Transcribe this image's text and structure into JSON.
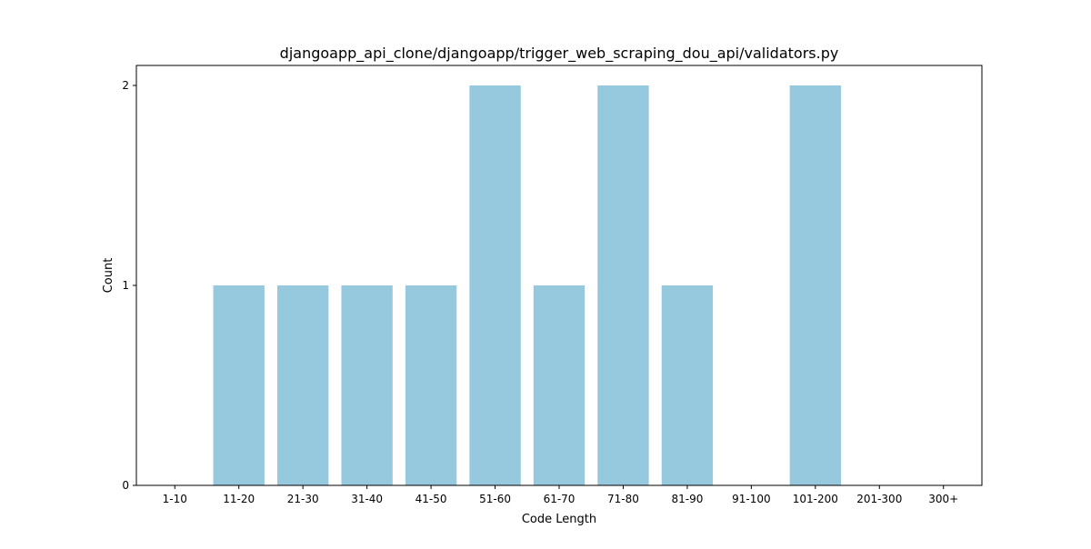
{
  "chart_data": {
    "type": "bar",
    "title": "djangoapp_api_clone/djangoapp/trigger_web_scraping_dou_api/validators.py",
    "xlabel": "Code Length",
    "ylabel": "Count",
    "categories": [
      "1-10",
      "11-20",
      "21-30",
      "31-40",
      "41-50",
      "51-60",
      "61-70",
      "71-80",
      "81-90",
      "91-100",
      "101-200",
      "201-300",
      "300+"
    ],
    "values": [
      0,
      1,
      1,
      1,
      1,
      2,
      1,
      2,
      1,
      0,
      2,
      0,
      0
    ],
    "yticks": [
      0,
      1,
      2
    ],
    "ylim": [
      0,
      2.1
    ],
    "grid": false,
    "bar_color": "#96c9dd"
  }
}
